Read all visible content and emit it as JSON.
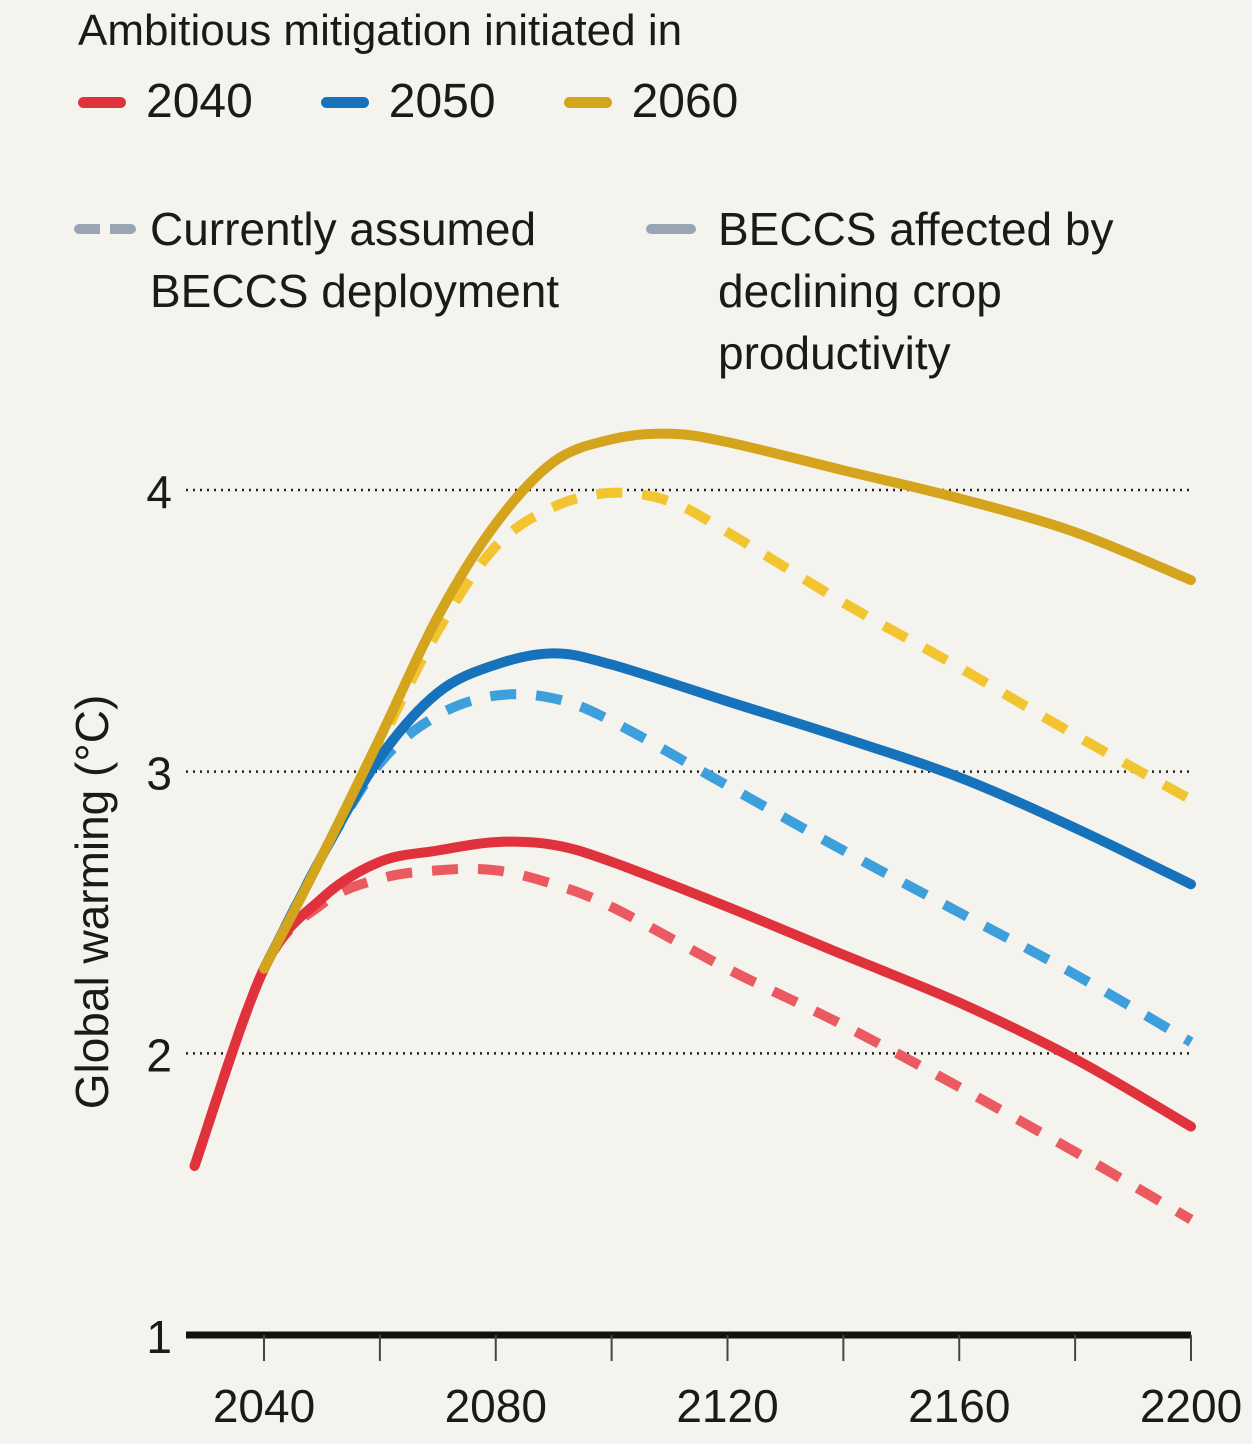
{
  "legend": {
    "title": "Ambitious mitigation initiated in",
    "years": [
      {
        "label": "2040",
        "color": "#e0323c"
      },
      {
        "label": "2050",
        "color": "#1673bb"
      },
      {
        "label": "2060",
        "color": "#d4a41c"
      }
    ],
    "styles": [
      {
        "label": "Currently assumed BECCS deployment",
        "line": "dashed",
        "color": "#99a4b4"
      },
      {
        "label": "BECCS affected by declining crop productivity",
        "line": "solid",
        "color": "#99a4b4"
      }
    ]
  },
  "chart_data": {
    "type": "line",
    "title": "",
    "xlabel": "",
    "ylabel": "Global warming (°C)",
    "xlim": [
      2025,
      2200
    ],
    "ylim": [
      1,
      4.3
    ],
    "xticks_major": [
      2040,
      2080,
      2120,
      2160,
      2200
    ],
    "xticks_minor": [
      2060,
      2100,
      2140,
      2180
    ],
    "yticks": [
      1,
      2,
      3,
      4
    ],
    "grid": "dotted horizontal at 2, 3, 4",
    "series": [
      {
        "name": "2040",
        "style": "solid",
        "color": "#e0323c",
        "x": [
          2028,
          2040,
          2050,
          2060,
          2070,
          2080,
          2090,
          2100,
          2120,
          2140,
          2160,
          2180,
          2200
        ],
        "y": [
          1.6,
          2.3,
          2.55,
          2.68,
          2.72,
          2.75,
          2.74,
          2.68,
          2.52,
          2.35,
          2.18,
          1.98,
          1.74
        ]
      },
      {
        "name": "2040",
        "style": "dashed",
        "color": "#ea5a60",
        "x": [
          2028,
          2040,
          2050,
          2060,
          2070,
          2080,
          2090,
          2100,
          2120,
          2140,
          2160,
          2180,
          2200
        ],
        "y": [
          1.6,
          2.3,
          2.53,
          2.62,
          2.65,
          2.65,
          2.6,
          2.52,
          2.3,
          2.1,
          1.88,
          1.65,
          1.41
        ]
      },
      {
        "name": "2050",
        "style": "solid",
        "color": "#1673bb",
        "x": [
          2040,
          2050,
          2060,
          2070,
          2080,
          2090,
          2100,
          2120,
          2140,
          2160,
          2180,
          2200
        ],
        "y": [
          2.3,
          2.7,
          3.05,
          3.28,
          3.38,
          3.42,
          3.38,
          3.25,
          3.12,
          2.98,
          2.8,
          2.6
        ]
      },
      {
        "name": "2050",
        "style": "dashed",
        "color": "#3d9fdb",
        "x": [
          2040,
          2050,
          2060,
          2070,
          2080,
          2090,
          2100,
          2120,
          2140,
          2160,
          2180,
          2200
        ],
        "y": [
          2.3,
          2.7,
          3.03,
          3.2,
          3.27,
          3.26,
          3.18,
          2.95,
          2.72,
          2.5,
          2.28,
          2.04
        ]
      },
      {
        "name": "2060",
        "style": "solid",
        "color": "#d4a41c",
        "x": [
          2040,
          2050,
          2060,
          2070,
          2080,
          2090,
          2100,
          2110,
          2120,
          2140,
          2160,
          2180,
          2200
        ],
        "y": [
          2.3,
          2.7,
          3.12,
          3.55,
          3.88,
          4.1,
          4.18,
          4.2,
          4.17,
          4.07,
          3.97,
          3.85,
          3.68
        ]
      },
      {
        "name": "2060",
        "style": "dashed",
        "color": "#f2c530",
        "x": [
          2040,
          2050,
          2060,
          2070,
          2080,
          2090,
          2100,
          2110,
          2120,
          2140,
          2160,
          2180,
          2200
        ],
        "y": [
          2.3,
          2.7,
          3.1,
          3.5,
          3.8,
          3.94,
          3.99,
          3.96,
          3.85,
          3.6,
          3.37,
          3.13,
          2.9
        ]
      }
    ]
  }
}
